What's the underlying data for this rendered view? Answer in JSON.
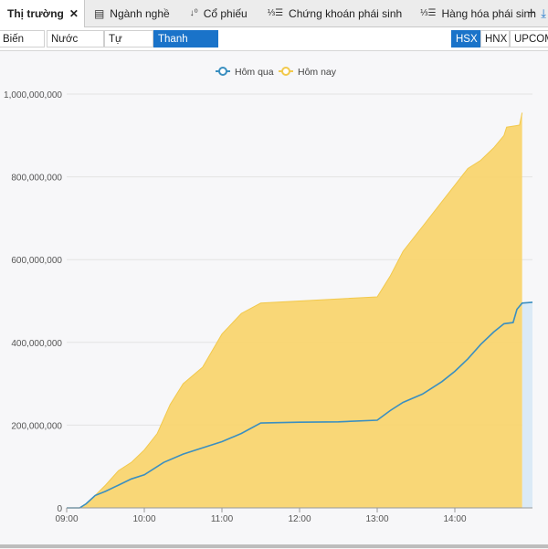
{
  "top_tabs": [
    {
      "label": "Thị trường",
      "icon": "market-icon"
    },
    {
      "label": "Ngành nghề",
      "icon": "table-icon"
    },
    {
      "label": "Cổ phiếu",
      "icon": "sort-icon"
    },
    {
      "label": "Chứng khoán phái sinh",
      "icon": "list-icon"
    },
    {
      "label": "Hàng hóa phái sinh",
      "icon": "list-icon"
    }
  ],
  "view_tabs": [
    "Biến động",
    "Nước ngoài",
    "Tự doanh",
    "Thanh khoản"
  ],
  "active_view_tab": "Thanh khoản",
  "exchange_tabs": [
    "HSX",
    "HNX",
    "UPCOM"
  ],
  "active_exchange": "HSX",
  "colors": {
    "today_fill": "#f9d46b",
    "today_line": "#f2c94c",
    "yesterday_line": "#3b8fc0",
    "yesterday_fill": "#dbeaf6",
    "active_tab": "#1a73c9"
  },
  "chart_data": {
    "type": "area",
    "x_ticks": [
      "09:00",
      "10:00",
      "11:00",
      "12:00",
      "13:00",
      "14:00"
    ],
    "y_ticks": [
      "0",
      "200,000,000",
      "400,000,000",
      "600,000,000",
      "800,000,000",
      "1,000,000,000"
    ],
    "ylim": [
      0,
      1000000000
    ],
    "legend_position": "top-center",
    "grid": "horizontal",
    "series": [
      {
        "name": "Hôm qua",
        "points": [
          [
            "09:00",
            0
          ],
          [
            "09:10",
            0
          ],
          [
            "09:15",
            10000000
          ],
          [
            "09:22",
            30000000
          ],
          [
            "09:30",
            40000000
          ],
          [
            "09:40",
            55000000
          ],
          [
            "09:50",
            70000000
          ],
          [
            "10:00",
            80000000
          ],
          [
            "10:15",
            110000000
          ],
          [
            "10:30",
            130000000
          ],
          [
            "10:45",
            145000000
          ],
          [
            "11:00",
            160000000
          ],
          [
            "11:15",
            180000000
          ],
          [
            "11:30",
            205000000
          ],
          [
            "12:00",
            207000000
          ],
          [
            "12:30",
            208000000
          ],
          [
            "13:00",
            212000000
          ],
          [
            "13:10",
            235000000
          ],
          [
            "13:20",
            255000000
          ],
          [
            "13:35",
            275000000
          ],
          [
            "13:50",
            305000000
          ],
          [
            "14:00",
            330000000
          ],
          [
            "14:10",
            360000000
          ],
          [
            "14:20",
            395000000
          ],
          [
            "14:30",
            425000000
          ],
          [
            "14:38",
            445000000
          ],
          [
            "14:45",
            448000000
          ],
          [
            "14:48",
            480000000
          ],
          [
            "14:52",
            495000000
          ],
          [
            "15:00",
            497000000
          ]
        ]
      },
      {
        "name": "Hôm nay",
        "points": [
          [
            "09:00",
            0
          ],
          [
            "09:10",
            0
          ],
          [
            "09:15",
            10000000
          ],
          [
            "09:22",
            30000000
          ],
          [
            "09:30",
            55000000
          ],
          [
            "09:40",
            90000000
          ],
          [
            "09:50",
            110000000
          ],
          [
            "10:00",
            140000000
          ],
          [
            "10:10",
            180000000
          ],
          [
            "10:20",
            250000000
          ],
          [
            "10:30",
            300000000
          ],
          [
            "10:45",
            340000000
          ],
          [
            "11:00",
            420000000
          ],
          [
            "11:15",
            470000000
          ],
          [
            "11:30",
            495000000
          ],
          [
            "12:00",
            500000000
          ],
          [
            "12:30",
            505000000
          ],
          [
            "13:00",
            510000000
          ],
          [
            "13:10",
            560000000
          ],
          [
            "13:20",
            620000000
          ],
          [
            "13:35",
            680000000
          ],
          [
            "13:50",
            740000000
          ],
          [
            "14:00",
            780000000
          ],
          [
            "14:10",
            820000000
          ],
          [
            "14:20",
            840000000
          ],
          [
            "14:30",
            870000000
          ],
          [
            "14:38",
            900000000
          ],
          [
            "14:40",
            920000000
          ],
          [
            "14:50",
            925000000
          ],
          [
            "14:52",
            955000000
          ]
        ]
      }
    ]
  }
}
